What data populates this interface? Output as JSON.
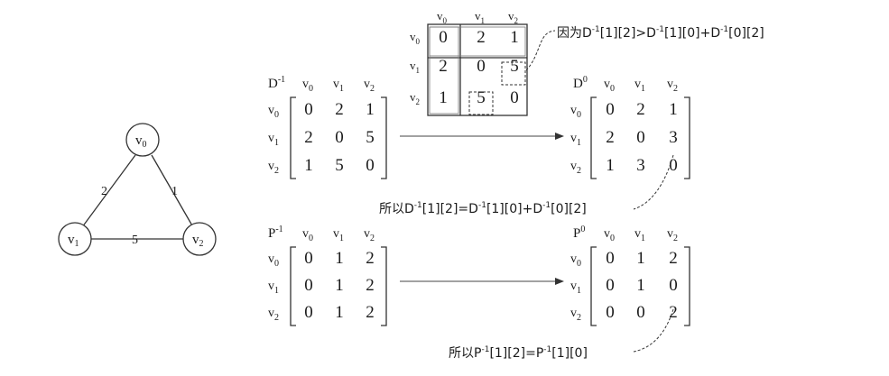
{
  "graph": {
    "nodes": [
      {
        "id": "v0",
        "base": "v",
        "sub": "0"
      },
      {
        "id": "v1",
        "base": "v",
        "sub": "1"
      },
      {
        "id": "v2",
        "base": "v",
        "sub": "2"
      }
    ],
    "edges": [
      {
        "from": "v0",
        "to": "v1",
        "weight": "2"
      },
      {
        "from": "v0",
        "to": "v2",
        "weight": "1"
      },
      {
        "from": "v1",
        "to": "v2",
        "weight": "5"
      }
    ]
  },
  "matrices": {
    "d_init": {
      "base": "D",
      "sup": "-1",
      "rows": [
        [
          "0",
          "2",
          "1"
        ],
        [
          "2",
          "0",
          "5"
        ],
        [
          "1",
          "5",
          "0"
        ]
      ]
    },
    "d_result": {
      "base": "D",
      "sup": "0",
      "rows": [
        [
          "0",
          "2",
          "1"
        ],
        [
          "2",
          "0",
          "3"
        ],
        [
          "1",
          "3",
          "0"
        ]
      ]
    },
    "p_init": {
      "base": "P",
      "sup": "-1",
      "rows": [
        [
          "0",
          "1",
          "2"
        ],
        [
          "0",
          "1",
          "2"
        ],
        [
          "0",
          "1",
          "2"
        ]
      ]
    },
    "p_result": {
      "base": "P",
      "sup": "0",
      "rows": [
        [
          "0",
          "1",
          "2"
        ],
        [
          "0",
          "1",
          "0"
        ],
        [
          "0",
          "0",
          "2"
        ]
      ]
    },
    "table": {
      "rows": [
        [
          "0",
          "2",
          "1"
        ],
        [
          "2",
          "0",
          "5"
        ],
        [
          "1",
          "5",
          "0"
        ]
      ]
    }
  },
  "labels": {
    "row_labels": [
      "v0",
      "v1",
      "v2"
    ],
    "col_labels": [
      "v0",
      "v1",
      "v2"
    ]
  },
  "annotations": {
    "because": "因为D-1[1][2]>D-1[1][0]+D-1[0][2]",
    "so_d": "所以D-1[1][2]=D-1[1][0]+D-1[0][2]",
    "so_p": "所以P-1[1][2]=P-1[1][0]"
  }
}
